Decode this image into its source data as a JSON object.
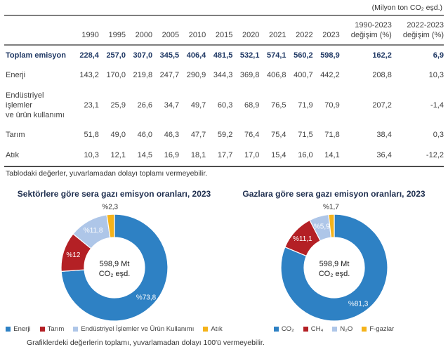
{
  "unit_note": "(Milyon ton CO₂ eşd.)",
  "table": {
    "columns": [
      "1990",
      "1995",
      "2000",
      "2005",
      "2010",
      "2015",
      "2020",
      "2021",
      "2022",
      "2023",
      "1990-2023\ndeğişim (%)",
      "2022-2023\ndeğişim (%)"
    ],
    "rows": [
      {
        "label": "Toplam emisyon",
        "bold": true,
        "values": [
          "228,4",
          "257,0",
          "307,0",
          "345,5",
          "406,4",
          "481,5",
          "532,1",
          "574,1",
          "560,2",
          "598,9",
          "162,2",
          "6,9"
        ]
      },
      {
        "label": "Enerji",
        "bold": false,
        "values": [
          "143,2",
          "170,0",
          "219,8",
          "247,7",
          "290,9",
          "344,3",
          "369,8",
          "406,8",
          "400,7",
          "442,2",
          "208,8",
          "10,3"
        ]
      },
      {
        "label": "Endüstriyel işlemler\nve ürün kullanımı",
        "bold": false,
        "values": [
          "23,1",
          "25,9",
          "26,6",
          "34,7",
          "49,7",
          "60,3",
          "68,9",
          "76,5",
          "71,9",
          "70,9",
          "207,2",
          "-1,4"
        ]
      },
      {
        "label": "Tarım",
        "bold": false,
        "values": [
          "51,8",
          "49,0",
          "46,0",
          "46,3",
          "47,7",
          "59,2",
          "76,4",
          "75,4",
          "71,5",
          "71,8",
          "38,4",
          "0,3"
        ]
      },
      {
        "label": "Atık",
        "bold": false,
        "values": [
          "10,3",
          "12,1",
          "14,5",
          "16,9",
          "18,1",
          "17,7",
          "17,0",
          "15,4",
          "16,0",
          "14,1",
          "36,4",
          "-12,2"
        ]
      }
    ],
    "footnote": "Tablodaki değerler, yuvarlamadan dolayı toplamı vermeyebilir."
  },
  "chart_data": [
    {
      "type": "donut",
      "title": "Sektörlere göre sera gazı emisyon oranları, 2023",
      "center_label": "598,9 Mt\nCO₂ eşd.",
      "slices": [
        {
          "name": "Enerji",
          "value": 73.8,
          "label": "%73,8",
          "color": "#2e81c4"
        },
        {
          "name": "Tarım",
          "value": 12.0,
          "label": "%12",
          "color": "#b42025"
        },
        {
          "name": "Endüstriyel İşlemler ve Ürün Kullanımı",
          "value": 11.8,
          "label": "%11,8",
          "color": "#aec6e8"
        },
        {
          "name": "Atık",
          "value": 2.3,
          "label": "%2,3",
          "color": "#f5b31a"
        }
      ],
      "legend_position": "bottom"
    },
    {
      "type": "donut",
      "title": "Gazlara göre sera gazı emisyon oranları, 2023",
      "center_label": "598,9 Mt\nCO₂ eşd.",
      "slices": [
        {
          "name": "CO₂",
          "value": 81.3,
          "label": "%81,3",
          "color": "#2e81c4"
        },
        {
          "name": "CH₄",
          "value": 11.1,
          "label": "%11,1",
          "color": "#b42025"
        },
        {
          "name": "N₂O",
          "value": 5.9,
          "label": "%5,9",
          "color": "#aec6e8"
        },
        {
          "name": "F-gazlar",
          "value": 1.7,
          "label": "%1,7",
          "color": "#f5b31a"
        }
      ],
      "legend_position": "bottom"
    }
  ],
  "charts_footnote": "Grafiklerdeki değerlerin toplamı, yuvarlamadan dolayı 100'ü vermeyebilir."
}
